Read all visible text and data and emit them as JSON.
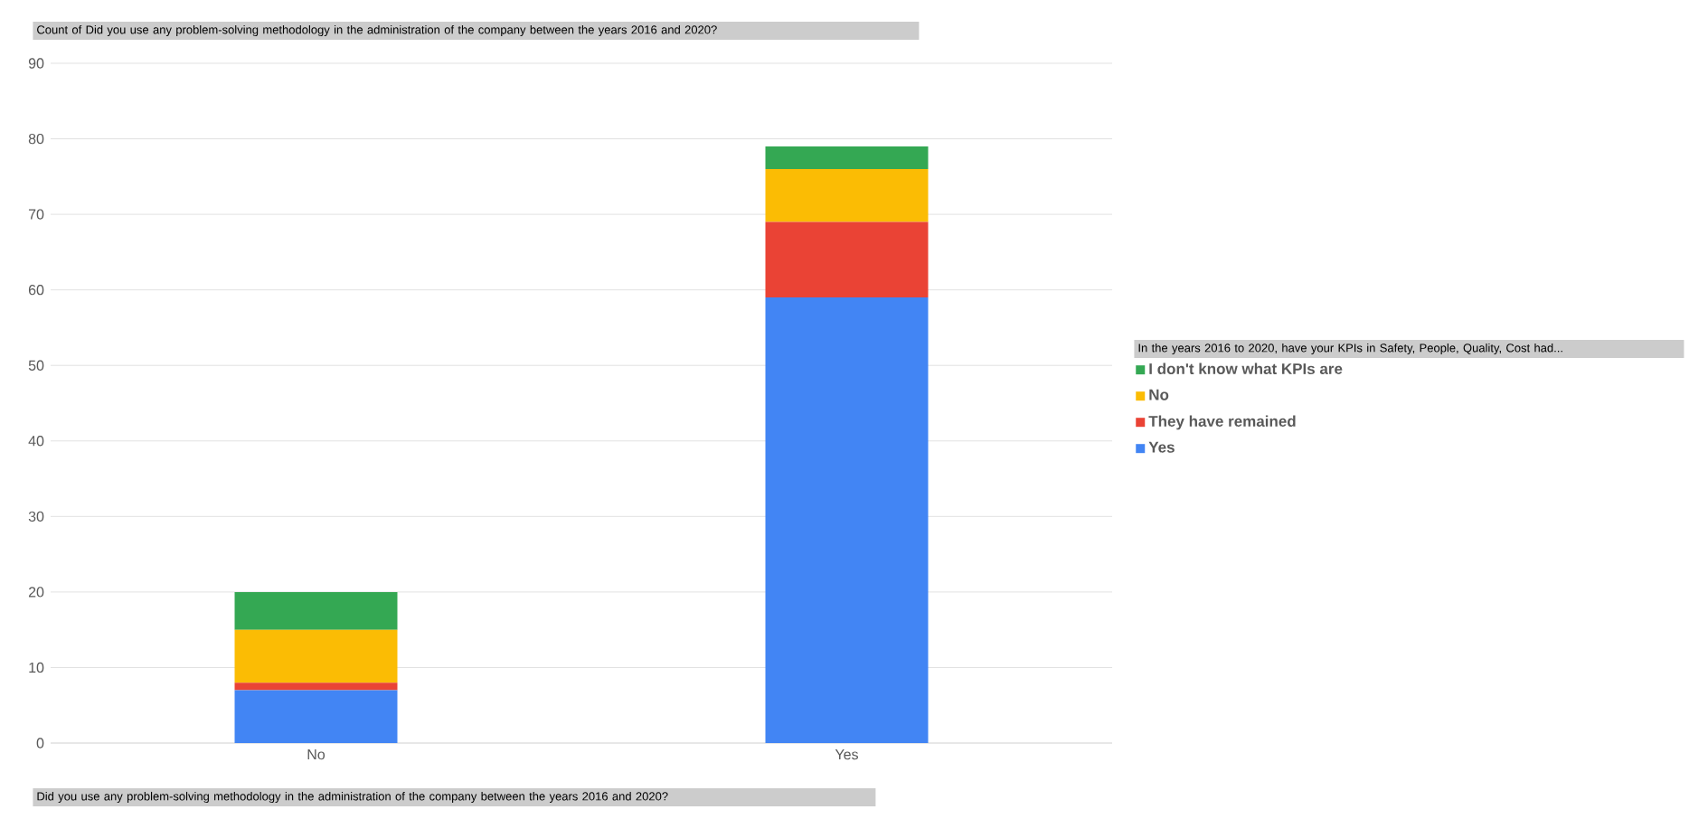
{
  "chart_data": {
    "type": "bar",
    "stacked": true,
    "title": "Count of Did you use any problem-solving methodology in the administration of the company between  the years 2016 and 2020?",
    "xlabel": "Did you use any problem-solving methodology in the administration of the company between the years 2016 and 2020?",
    "legend_title": "In the years 2016 to 2020, have your KPIs in Safety, People, Quality, Cost had...",
    "categories": [
      "No",
      "Yes"
    ],
    "series": [
      {
        "name": "Yes",
        "color": "#4285f4",
        "values": [
          7,
          59
        ]
      },
      {
        "name": "They have remained",
        "color": "#ea4335",
        "values": [
          1,
          10
        ]
      },
      {
        "name": "No",
        "color": "#fbbc04",
        "values": [
          7,
          7
        ]
      },
      {
        "name": "I don't know what KPIs are",
        "color": "#34a853",
        "values": [
          5,
          3
        ]
      }
    ],
    "ylim": [
      0,
      90
    ],
    "yticks": [
      0,
      10,
      20,
      30,
      40,
      50,
      60,
      70,
      80,
      90
    ],
    "grid": "y",
    "legend": "right"
  }
}
